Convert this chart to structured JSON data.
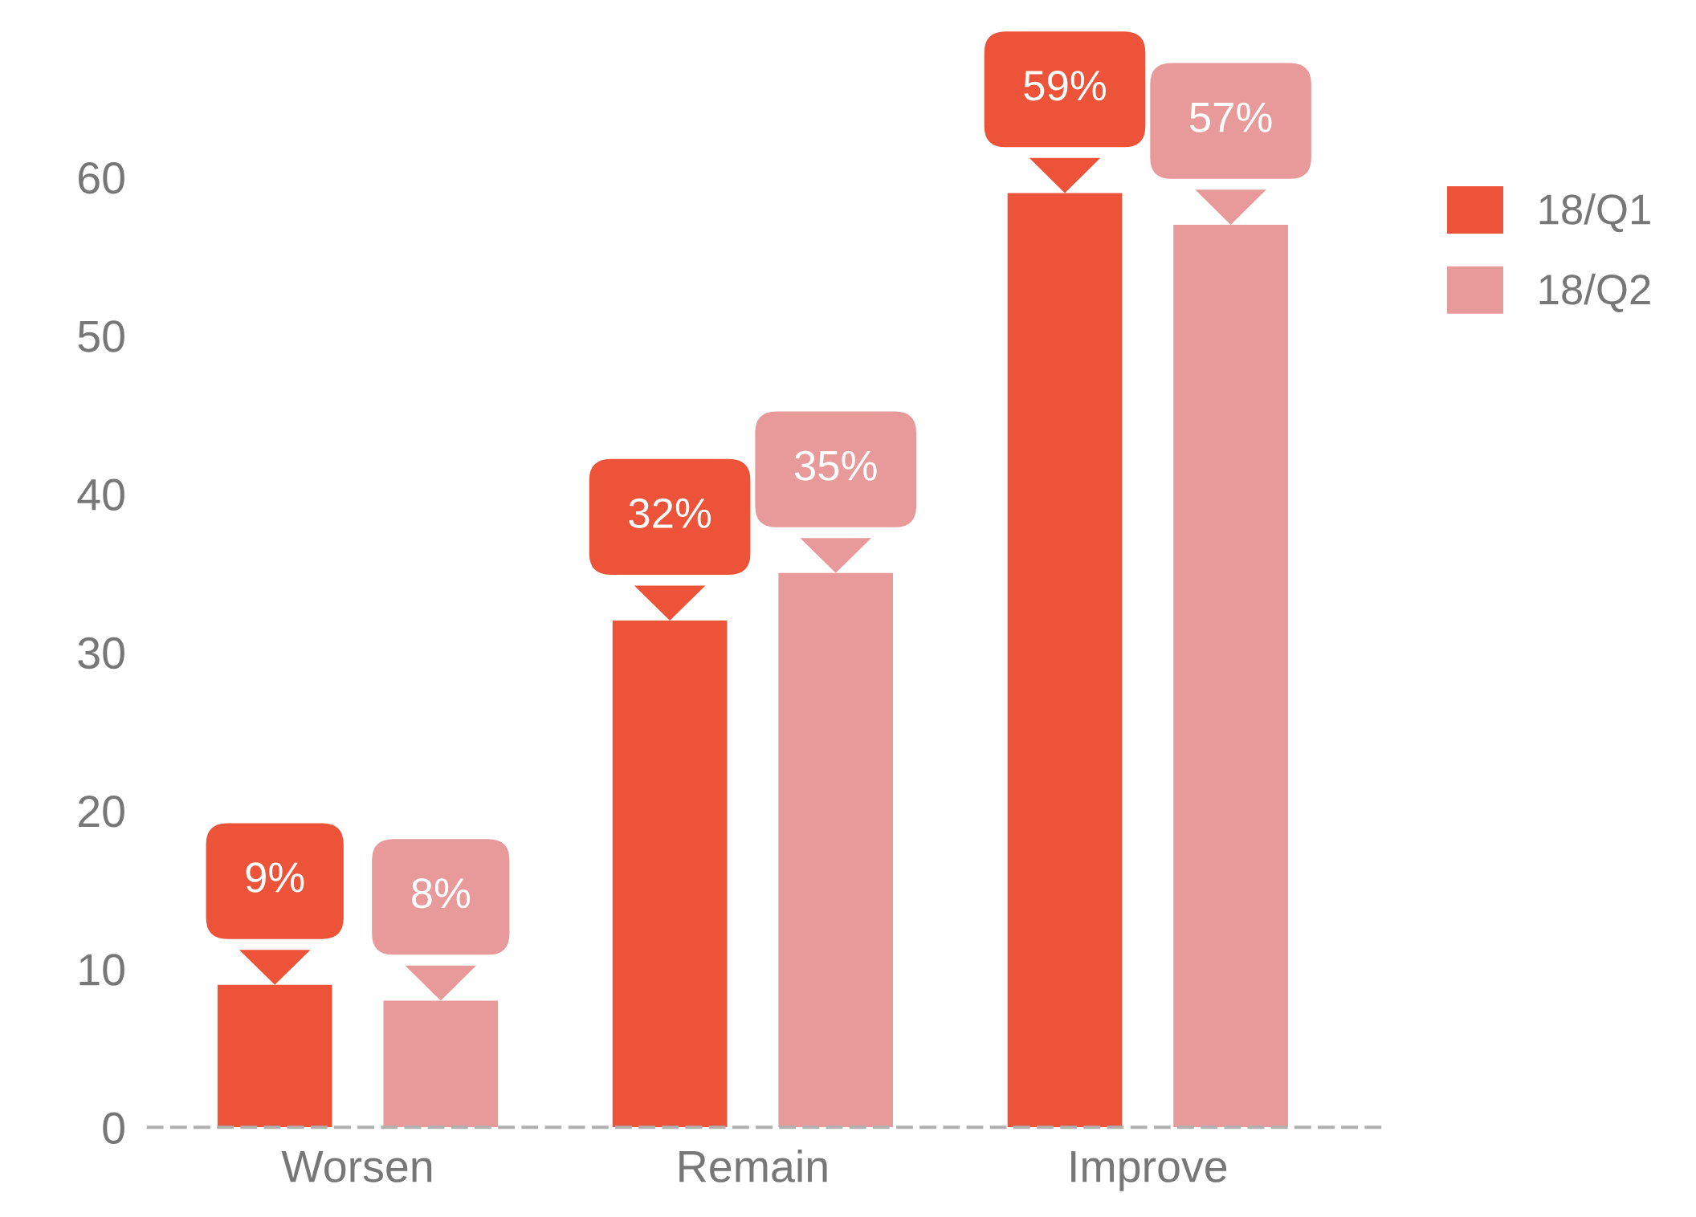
{
  "chart_data": {
    "type": "bar",
    "categories": [
      "Worsen",
      "Remain",
      "Improve"
    ],
    "series": [
      {
        "name": "18/Q1",
        "color": "#ec5338",
        "values": [
          9,
          32,
          59
        ],
        "value_labels": [
          "9%",
          "32%",
          "59%"
        ]
      },
      {
        "name": "18/Q2",
        "color": "#e89a9a",
        "values": [
          8,
          35,
          57
        ],
        "value_labels": [
          "8%",
          "35%",
          "57%"
        ]
      }
    ],
    "ylim": [
      0,
      60
    ],
    "yticks": [
      0,
      10,
      20,
      30,
      40,
      50,
      60
    ],
    "grid": false,
    "legend": "top right"
  }
}
